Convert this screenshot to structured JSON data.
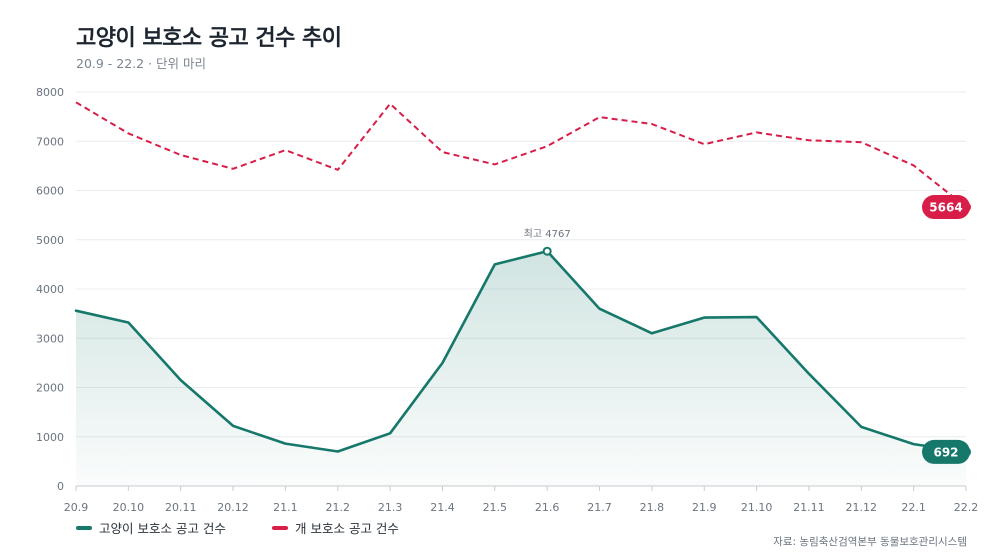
{
  "chart_data": {
    "type": "line",
    "title": "고양이 보호소 공고 건수 추이",
    "subtitle": "20.9 - 22.2 · 단위 마리",
    "x": [
      "20.9",
      "20.10",
      "20.11",
      "20.12",
      "21.1",
      "21.2",
      "21.3",
      "21.4",
      "21.5",
      "21.6",
      "21.7",
      "21.8",
      "21.9",
      "21.10",
      "21.11",
      "21.12",
      "22.1",
      "22.2"
    ],
    "ylim": [
      0,
      8000
    ],
    "yticks": [
      0,
      1000,
      2000,
      3000,
      4000,
      5000,
      6000,
      7000,
      8000
    ],
    "grid": true,
    "legend_position": "bottom-left",
    "series": [
      {
        "key": "cat",
        "name": "고양이 보호소 공고 건수",
        "color": "#16786a",
        "style": "solid-area",
        "values": [
          3560,
          3320,
          2150,
          1220,
          860,
          700,
          1070,
          2500,
          4500,
          4767,
          3600,
          3100,
          3420,
          3430,
          2280,
          1200,
          850,
          692
        ]
      },
      {
        "key": "dog",
        "name": "개 보호소 공고 건수",
        "color": "#d81e48",
        "style": "dashed",
        "values": [
          7790,
          7160,
          6720,
          6440,
          6820,
          6420,
          7760,
          6780,
          6530,
          6900,
          7490,
          7350,
          6940,
          7180,
          7020,
          6980,
          6510,
          5664
        ]
      }
    ],
    "annotations": {
      "peak_label": "최고 4767",
      "cat_last_label": "692",
      "dog_last_label": "5664"
    },
    "source": "자료: 농림축산검역본부 동물보호관리시스템"
  }
}
